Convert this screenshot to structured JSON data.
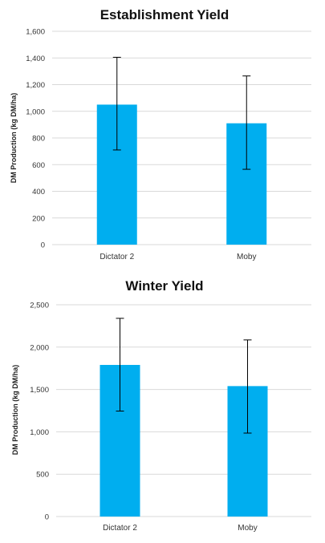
{
  "chart_data": [
    {
      "type": "bar",
      "title": "Establishment Yield",
      "ylabel": "DM Production (kg DM/ha)",
      "xlabel": "",
      "categories": [
        "Dictator 2",
        "Moby"
      ],
      "values": [
        1050,
        910
      ],
      "error_low": [
        710,
        565
      ],
      "error_high": [
        1405,
        1265
      ],
      "ylim": [
        0,
        1600
      ],
      "yticks": [
        0,
        200,
        400,
        600,
        800,
        1000,
        1200,
        1400,
        1600
      ],
      "ytick_labels": [
        "0",
        "200",
        "400",
        "600",
        "800",
        "1,000",
        "1,200",
        "1,400",
        "1,600"
      ],
      "grid": true,
      "bar_color": "#00aeef"
    },
    {
      "type": "bar",
      "title": "Winter Yield",
      "ylabel": "DM Production (kg DM/ha)",
      "xlabel": "",
      "categories": [
        "Dictator 2",
        "Moby"
      ],
      "values": [
        1790,
        1540
      ],
      "error_low": [
        1245,
        985
      ],
      "error_high": [
        2340,
        2085
      ],
      "ylim": [
        0,
        2500
      ],
      "yticks": [
        0,
        500,
        1000,
        1500,
        2000,
        2500
      ],
      "ytick_labels": [
        "0",
        "500",
        "1,000",
        "1,500",
        "2,000",
        "2,500"
      ],
      "grid": true,
      "bar_color": "#00aeef"
    }
  ]
}
